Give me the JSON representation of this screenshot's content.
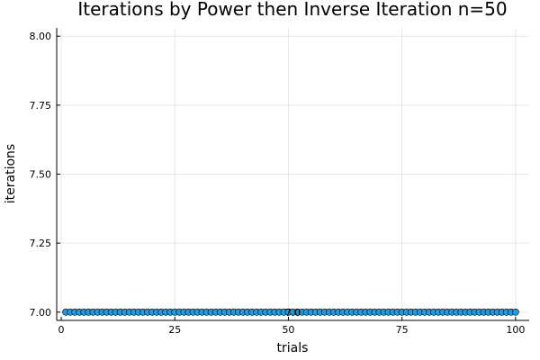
{
  "chart_data": {
    "type": "scatter",
    "title": "Iterations by Power then Inverse Iteration  n=50",
    "xlabel": "trials",
    "ylabel": "iterations",
    "xlim": [
      -1,
      103
    ],
    "ylim": [
      6.97,
      8.03
    ],
    "xticks": [
      0,
      25,
      50,
      75,
      100
    ],
    "xtick_labels": [
      "0",
      "25",
      "50",
      "75",
      "100"
    ],
    "yticks": [
      7.0,
      7.25,
      7.5,
      7.75,
      8.0
    ],
    "ytick_labels": [
      "7.00",
      "7.25",
      "7.50",
      "7.75",
      "8.00"
    ],
    "grid": true,
    "legend": "none",
    "marker_color": "#1f9be0",
    "series": [
      {
        "x": [
          1,
          2,
          3,
          4,
          5,
          6,
          7,
          8,
          9,
          10,
          11,
          12,
          13,
          14,
          15,
          16,
          17,
          18,
          19,
          20,
          21,
          22,
          23,
          24,
          25,
          26,
          27,
          28,
          29,
          30,
          31,
          32,
          33,
          34,
          35,
          36,
          37,
          38,
          39,
          40,
          41,
          42,
          43,
          44,
          45,
          46,
          47,
          48,
          49,
          50,
          51,
          52,
          53,
          54,
          55,
          56,
          57,
          58,
          59,
          60,
          61,
          62,
          63,
          64,
          65,
          66,
          67,
          68,
          69,
          70,
          71,
          72,
          73,
          74,
          75,
          76,
          77,
          78,
          79,
          80,
          81,
          82,
          83,
          84,
          85,
          86,
          87,
          88,
          89,
          90,
          91,
          92,
          93,
          94,
          95,
          96,
          97,
          98,
          99,
          100
        ],
        "y": [
          7,
          7,
          7,
          7,
          7,
          7,
          7,
          7,
          7,
          7,
          7,
          7,
          7,
          7,
          7,
          7,
          7,
          7,
          7,
          7,
          7,
          7,
          7,
          7,
          7,
          7,
          7,
          7,
          7,
          7,
          7,
          7,
          7,
          7,
          7,
          7,
          7,
          7,
          7,
          7,
          7,
          7,
          7,
          7,
          7,
          7,
          7,
          7,
          7,
          7,
          7,
          7,
          7,
          7,
          7,
          7,
          7,
          7,
          7,
          7,
          7,
          7,
          7,
          7,
          7,
          7,
          7,
          7,
          7,
          7,
          7,
          7,
          7,
          7,
          7,
          7,
          7,
          7,
          7,
          7,
          7,
          7,
          7,
          7,
          7,
          7,
          7,
          7,
          7,
          7,
          7,
          7,
          7,
          7,
          7,
          7,
          7,
          7,
          7,
          7
        ]
      }
    ],
    "annotations": [
      {
        "x": 51,
        "y": 7.0,
        "text": "7.0"
      }
    ]
  }
}
